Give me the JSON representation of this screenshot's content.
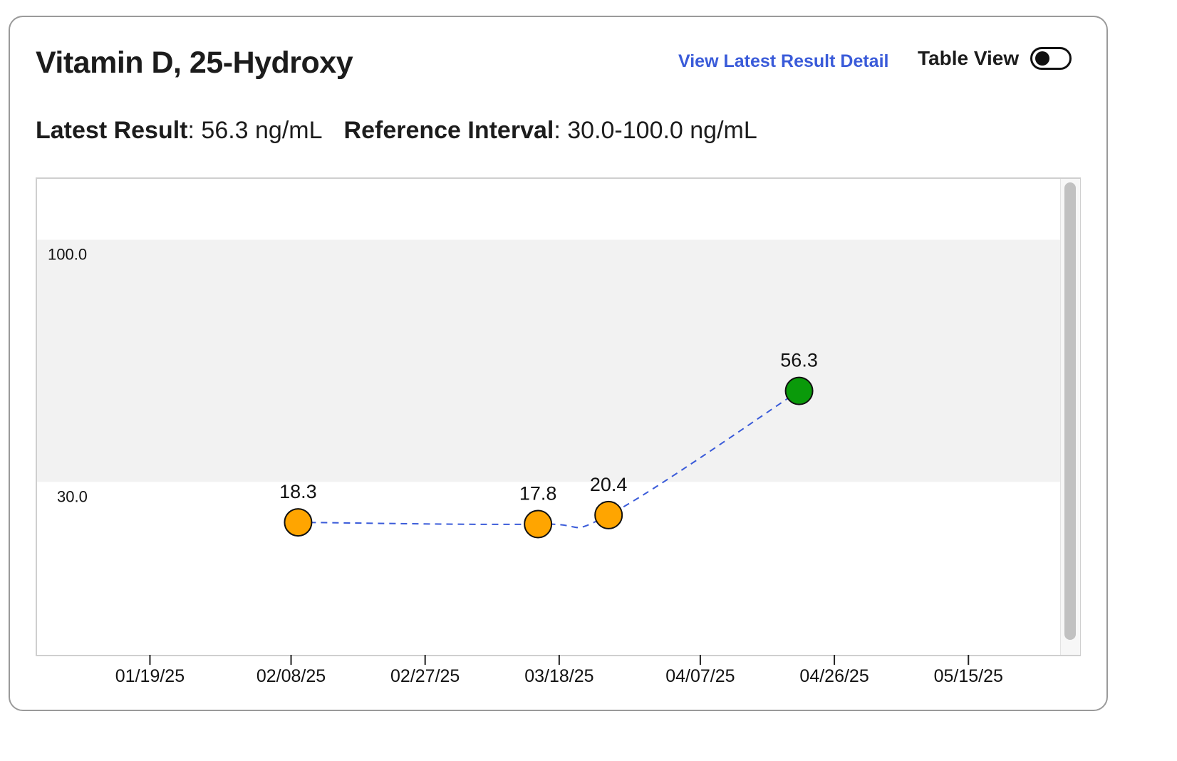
{
  "header": {
    "title": "Vitamin D, 25-Hydroxy",
    "detail_link": "View Latest Result Detail",
    "table_view_label": "Table View",
    "table_view_on": false
  },
  "summary": {
    "latest_label": "Latest Result",
    "latest_value": "56.3 ng/mL",
    "reference_label": "Reference Interval",
    "reference_value": "30.0-100.0 ng/mL"
  },
  "colors": {
    "normal_point": "#0a9a0a",
    "abnormal_point": "#ffa500",
    "trend_line": "#3a5bd9",
    "reference_band": "#f2f2f2",
    "link": "#3a5bd9"
  },
  "chart_data": {
    "type": "scatter",
    "title": "",
    "xlabel": "",
    "ylabel": "",
    "x_axis": {
      "type": "date",
      "tick_labels": [
        "01/19/25",
        "02/08/25",
        "02/27/25",
        "03/18/25",
        "04/07/25",
        "04/26/25",
        "05/15/25"
      ],
      "tick_dates": [
        "2025-01-19",
        "2025-02-08",
        "2025-02-27",
        "2025-03-18",
        "2025-04-07",
        "2025-04-26",
        "2025-05-15"
      ],
      "range": [
        "2025-01-03",
        "2025-05-28"
      ]
    },
    "y_axis": {
      "range": [
        -20,
        117.6
      ],
      "grid": false
    },
    "reference_band": {
      "low": 30.0,
      "high": 100.0,
      "low_label": "30.0",
      "high_label": "100.0"
    },
    "series": [
      {
        "line_style": "dashed",
        "points": [
          {
            "x": "2025-02-09",
            "y": 18.3,
            "label": "18.3",
            "status": "abnormal"
          },
          {
            "x": "2025-03-15",
            "y": 17.8,
            "label": "17.8",
            "status": "abnormal"
          },
          {
            "x": "2025-03-25",
            "y": 20.4,
            "label": "20.4",
            "status": "abnormal"
          },
          {
            "x": "2025-04-21",
            "y": 56.3,
            "label": "56.3",
            "status": "normal"
          }
        ]
      }
    ]
  }
}
